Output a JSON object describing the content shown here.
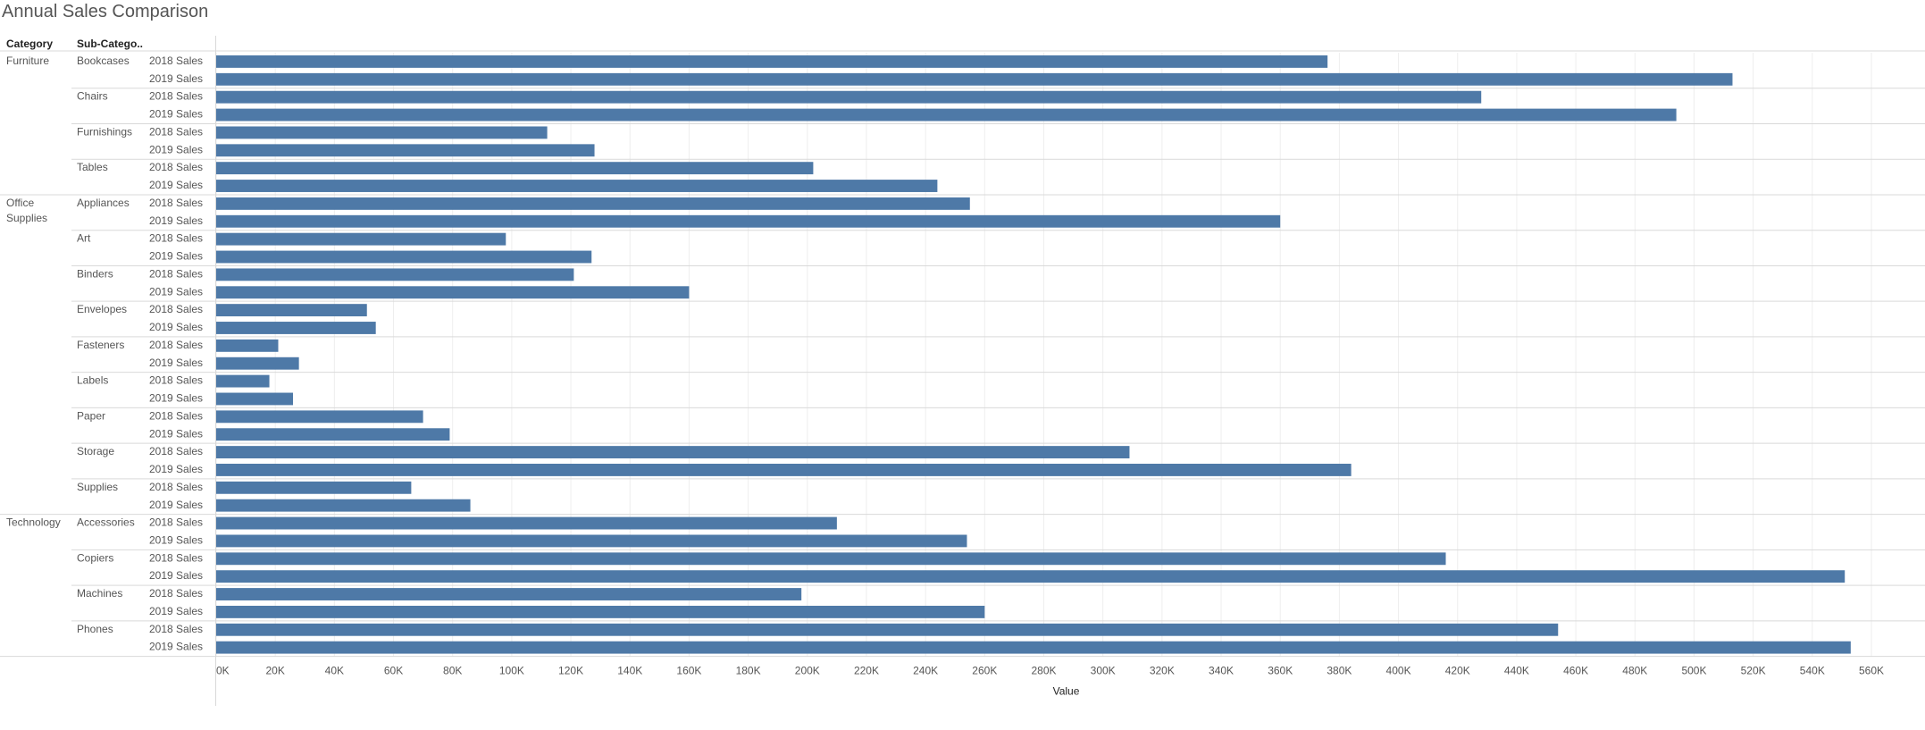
{
  "title": "Annual Sales Comparison",
  "headers": {
    "category": "Category",
    "subcategory": "Sub-Catego.."
  },
  "colors": {
    "bar": "#4e79a7",
    "text": "#555555",
    "grid": "#eeeeee",
    "rule": "#d9d9d9",
    "header": "#222222"
  },
  "chart_data": {
    "type": "bar",
    "orientation": "horizontal",
    "xlabel": "Value",
    "xlim": [
      0,
      560000
    ],
    "xticks": [
      0,
      20000,
      40000,
      60000,
      80000,
      100000,
      120000,
      140000,
      160000,
      180000,
      200000,
      220000,
      240000,
      260000,
      280000,
      300000,
      320000,
      340000,
      360000,
      380000,
      400000,
      420000,
      440000,
      460000,
      480000,
      500000,
      520000,
      540000,
      560000
    ],
    "xtick_labels": [
      "0K",
      "20K",
      "40K",
      "60K",
      "80K",
      "100K",
      "120K",
      "140K",
      "160K",
      "180K",
      "200K",
      "220K",
      "240K",
      "260K",
      "280K",
      "300K",
      "320K",
      "340K",
      "360K",
      "380K",
      "400K",
      "420K",
      "440K",
      "460K",
      "480K",
      "500K",
      "520K",
      "540K",
      "560K"
    ],
    "grid": true,
    "measures": [
      "2018 Sales",
      "2019 Sales"
    ],
    "groups": [
      {
        "category": "Furniture",
        "category_label": [
          "Furniture"
        ],
        "subcategories": [
          {
            "name": "Bookcases",
            "values": [
              376000,
              513000
            ]
          },
          {
            "name": "Chairs",
            "values": [
              428000,
              494000
            ]
          },
          {
            "name": "Furnishings",
            "values": [
              112000,
              128000
            ]
          },
          {
            "name": "Tables",
            "values": [
              202000,
              244000
            ]
          }
        ]
      },
      {
        "category": "Office Supplies",
        "category_label": [
          "Office",
          "Supplies"
        ],
        "subcategories": [
          {
            "name": "Appliances",
            "values": [
              255000,
              360000
            ]
          },
          {
            "name": "Art",
            "values": [
              98000,
              127000
            ]
          },
          {
            "name": "Binders",
            "values": [
              121000,
              160000
            ]
          },
          {
            "name": "Envelopes",
            "values": [
              51000,
              54000
            ]
          },
          {
            "name": "Fasteners",
            "values": [
              21000,
              28000
            ]
          },
          {
            "name": "Labels",
            "values": [
              18000,
              26000
            ]
          },
          {
            "name": "Paper",
            "values": [
              70000,
              79000
            ]
          },
          {
            "name": "Storage",
            "values": [
              309000,
              384000
            ]
          },
          {
            "name": "Supplies",
            "values": [
              66000,
              86000
            ]
          }
        ]
      },
      {
        "category": "Technology",
        "category_label": [
          "Technology"
        ],
        "subcategories": [
          {
            "name": "Accessories",
            "values": [
              210000,
              254000
            ]
          },
          {
            "name": "Copiers",
            "values": [
              416000,
              551000
            ]
          },
          {
            "name": "Machines",
            "values": [
              198000,
              260000
            ]
          },
          {
            "name": "Phones",
            "values": [
              454000,
              553000
            ]
          }
        ]
      }
    ]
  }
}
